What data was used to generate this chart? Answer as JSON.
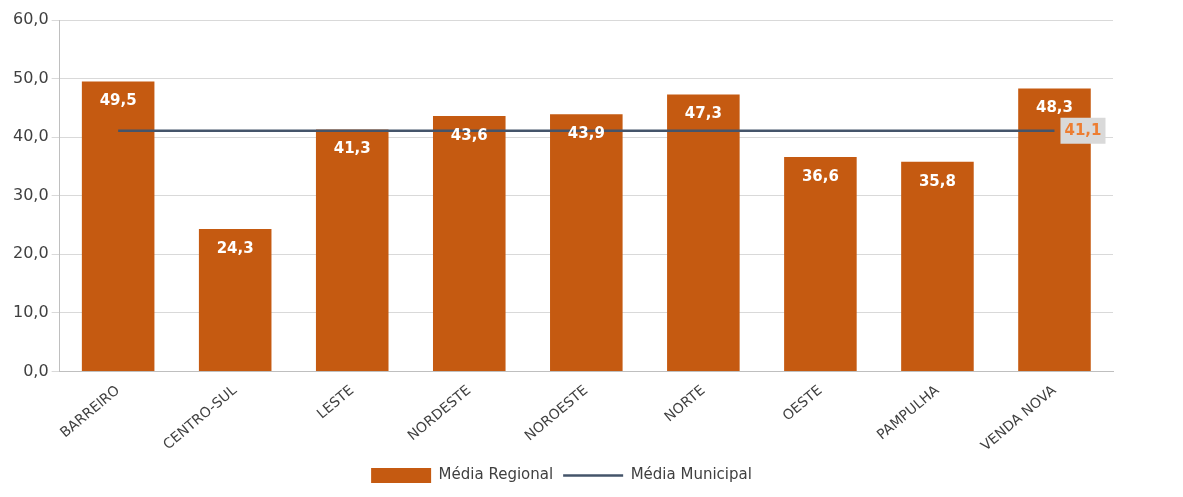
{
  "chart_data": {
    "type": "bar",
    "categories": [
      "BARREIRO",
      "CENTRO-SUL",
      "LESTE",
      "NORDESTE",
      "NOROESTE",
      "NORTE",
      "OESTE",
      "PAMPULHA",
      "VENDA NOVA"
    ],
    "series": [
      {
        "name": "Média Regional",
        "color": "#c55a11",
        "values": [
          49.5,
          24.3,
          41.3,
          43.6,
          43.9,
          47.3,
          36.6,
          35.8,
          48.3
        ],
        "value_labels": [
          "49,5",
          "24,3",
          "41,3",
          "43,6",
          "43,9",
          "47,3",
          "36,6",
          "35,8",
          "48,3"
        ]
      },
      {
        "name": "Média Municipal",
        "type": "line",
        "color": "#44546a",
        "values": [
          41.1,
          41.1,
          41.1,
          41.1,
          41.1,
          41.1,
          41.1,
          41.1,
          41.1
        ],
        "value_labels": [
          null,
          null,
          null,
          null,
          null,
          null,
          null,
          null,
          "41,1"
        ]
      }
    ],
    "ylim": [
      0,
      60
    ],
    "yticks": [
      {
        "value": 0,
        "label": "0,0"
      },
      {
        "value": 10,
        "label": "10,0"
      },
      {
        "value": 20,
        "label": "20,0"
      },
      {
        "value": 30,
        "label": "30,0"
      },
      {
        "value": 40,
        "label": "40,0"
      },
      {
        "value": 50,
        "label": "50,0"
      },
      {
        "value": 60,
        "label": "60,0"
      }
    ],
    "grid": "y",
    "legend": "bottom",
    "marker": "none"
  }
}
